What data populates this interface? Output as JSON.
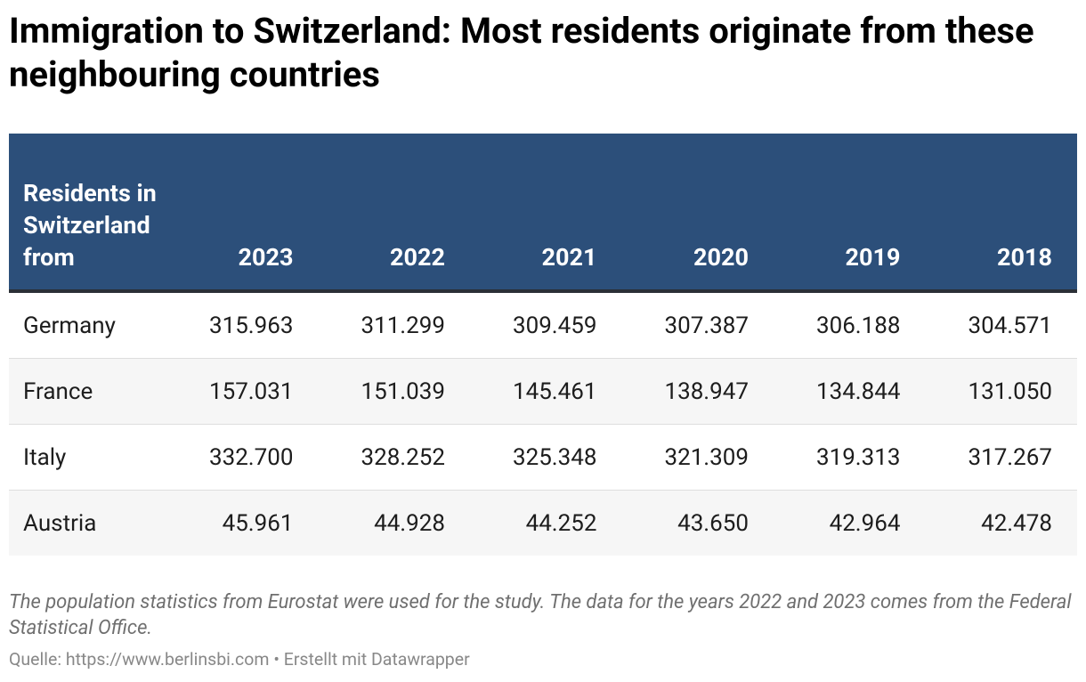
{
  "header": {
    "title": "Immigration to Switzerland: Most residents originate from these neighbouring countries"
  },
  "table": {
    "columns": [
      "Residents in Switzerland from",
      "2023",
      "2022",
      "2021",
      "2020",
      "2019",
      "2018"
    ],
    "rows": [
      [
        "Germany",
        "315.963",
        "311.299",
        "309.459",
        "307.387",
        "306.188",
        "304.571"
      ],
      [
        "France",
        "157.031",
        "151.039",
        "145.461",
        "138.947",
        "134.844",
        "131.050"
      ],
      [
        "Italy",
        "332.700",
        "328.252",
        "325.348",
        "321.309",
        "319.313",
        "317.267"
      ],
      [
        "Austria",
        "45.961",
        "44.928",
        "44.252",
        "43.650",
        "42.964",
        "42.478"
      ]
    ]
  },
  "footer": {
    "notes": "The population statistics from Eurostat were used for the study. The data for the years 2022 and 2023 comes from the Federal Statistical Office.",
    "source": "Quelle: https://www.berlinsbi.com • Erstellt mit Datawrapper"
  }
}
